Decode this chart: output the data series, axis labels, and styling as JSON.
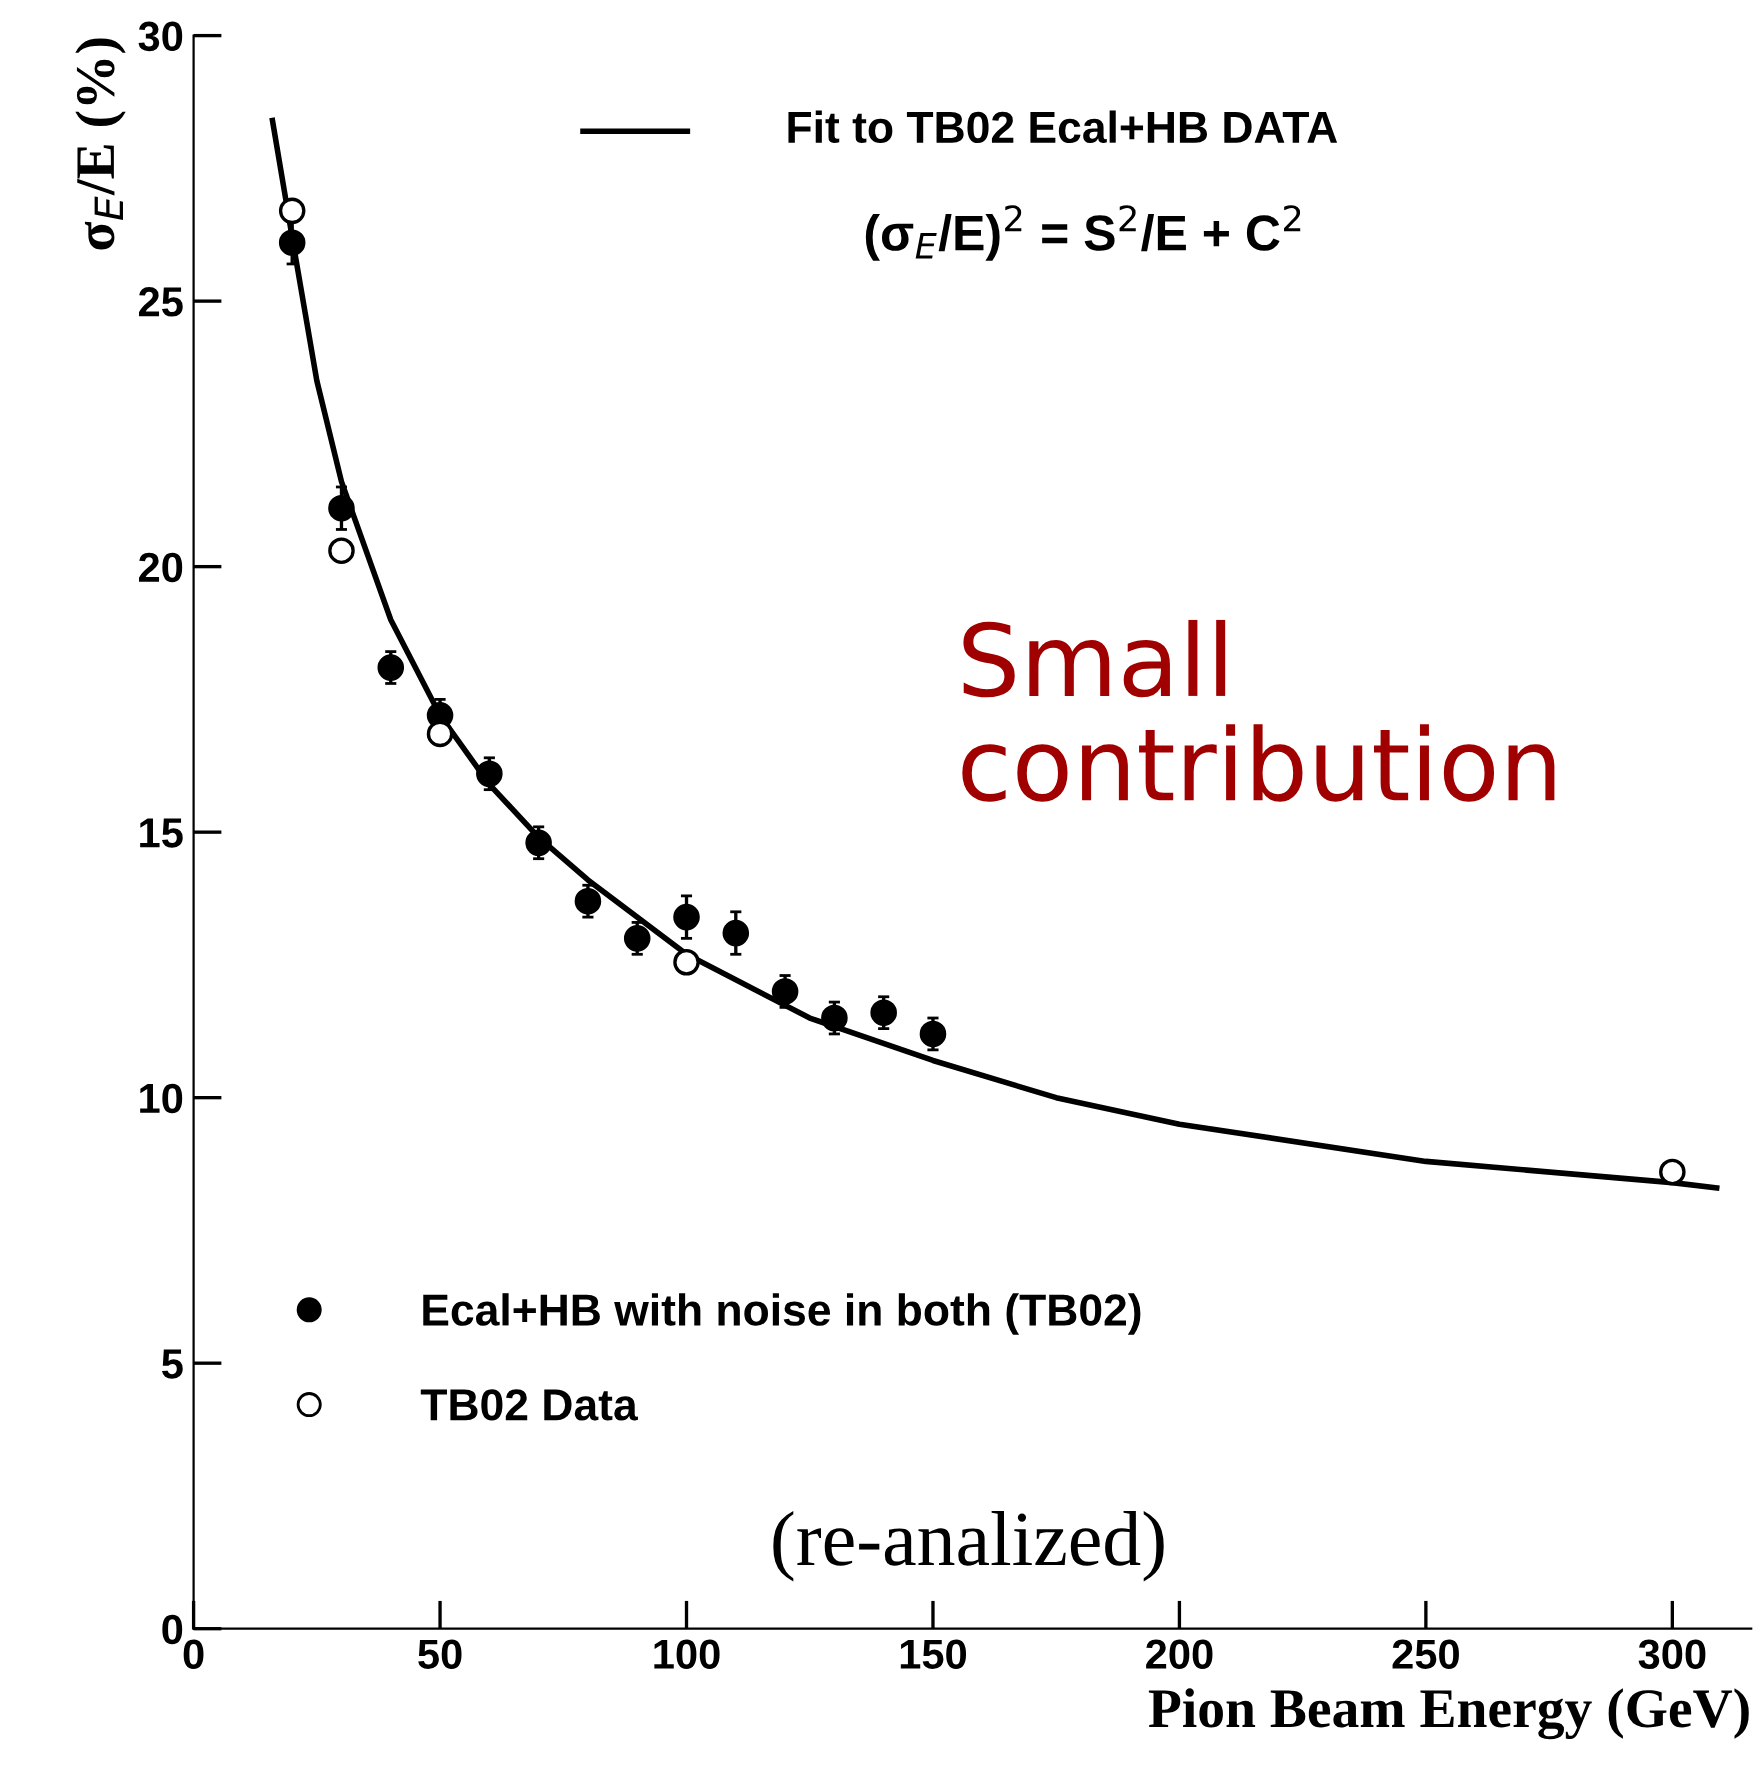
{
  "chart_data": {
    "type": "scatter",
    "xlabel": "Pion Beam Energy (GeV)",
    "ylabel": "σ$_{E}$/E (%)",
    "xlim": [
      0,
      316
    ],
    "ylim": [
      0,
      30
    ],
    "xticks": [
      0,
      50,
      100,
      150,
      200,
      250,
      300
    ],
    "yticks": [
      0,
      5,
      10,
      15,
      20,
      25,
      30
    ],
    "legend": "left",
    "grid": false,
    "series": [
      {
        "name": "Fit to TB02 Ecal+HB DATA",
        "type": "line",
        "color": "#000000",
        "marker": "none",
        "line_style": "solid",
        "x": [
          16,
          20,
          25,
          30,
          40,
          50,
          60,
          70,
          80,
          100,
          125,
          150,
          175,
          200,
          250,
          300,
          309
        ],
        "values": [
          28.4,
          26.2,
          23.5,
          21.6,
          19.0,
          17.2,
          15.9,
          14.9,
          14.1,
          12.7,
          11.5,
          10.7,
          10.0,
          9.5,
          8.8,
          8.4,
          8.3
        ]
      },
      {
        "name": "Ecal+HB with noise in both (TB02)",
        "color": "#000000",
        "marker": "circle",
        "x": [
          20,
          30,
          40,
          50,
          60,
          70,
          80,
          90,
          100,
          110,
          120,
          130,
          140,
          150
        ],
        "values": [
          26.1,
          21.1,
          18.1,
          17.2,
          16.1,
          14.8,
          13.7,
          13.0,
          13.4,
          13.1,
          12.0,
          11.5,
          11.6,
          11.2
        ],
        "errors": [
          0.4,
          0.4,
          0.3,
          0.3,
          0.3,
          0.3,
          0.3,
          0.3,
          0.4,
          0.4,
          0.3,
          0.3,
          0.3,
          0.3
        ]
      },
      {
        "name": "TB02 Data",
        "color": "#ffffff",
        "marker": "circle",
        "x": [
          20,
          30,
          50,
          100,
          300
        ],
        "values": [
          26.7,
          20.3,
          16.85,
          12.55,
          8.6
        ]
      }
    ],
    "annotations": [
      "(σ$_{E}$/E)$^{2}$ = S$^{2}$/E + C$^{2}$",
      "Small\ncontribution",
      "(re-analized)"
    ]
  }
}
